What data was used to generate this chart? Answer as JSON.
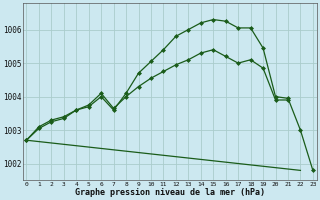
{
  "title": "Graphe pression niveau de la mer (hPa)",
  "background_color": "#cce8f0",
  "grid_color": "#aacccc",
  "line_color": "#1a5c1a",
  "ylim": [
    1001.5,
    1006.8
  ],
  "yticks": [
    1002,
    1003,
    1004,
    1005,
    1006
  ],
  "xlim": [
    -0.3,
    23.3
  ],
  "x_labels": [
    "0",
    "1",
    "2",
    "3",
    "4",
    "5",
    "6",
    "7",
    "8",
    "9",
    "10",
    "11",
    "12",
    "13",
    "14",
    "15",
    "16",
    "17",
    "18",
    "19",
    "20",
    "21",
    "22",
    "23"
  ],
  "line1_y": [
    1002.7,
    1003.1,
    1003.3,
    1003.4,
    1003.6,
    1003.7,
    1004.0,
    1003.6,
    1004.1,
    1004.7,
    1005.05,
    1005.4,
    1005.8,
    1006.0,
    1006.2,
    1006.3,
    1006.25,
    1006.05,
    1006.05,
    1005.45,
    1004.0,
    1003.95,
    1003.0,
    1001.8
  ],
  "line2_y": [
    1002.7,
    1003.05,
    1003.25,
    1003.35,
    1003.6,
    1003.75,
    1004.1,
    1003.65,
    1004.0,
    1004.3,
    1004.55,
    1004.75,
    1004.95,
    1005.1,
    1005.3,
    1005.4,
    1005.2,
    1005.0,
    1005.1,
    1004.85,
    1003.9,
    1003.9,
    null,
    null
  ],
  "line3_x": [
    0,
    22
  ],
  "line3_y": [
    1002.7,
    1001.8
  ]
}
